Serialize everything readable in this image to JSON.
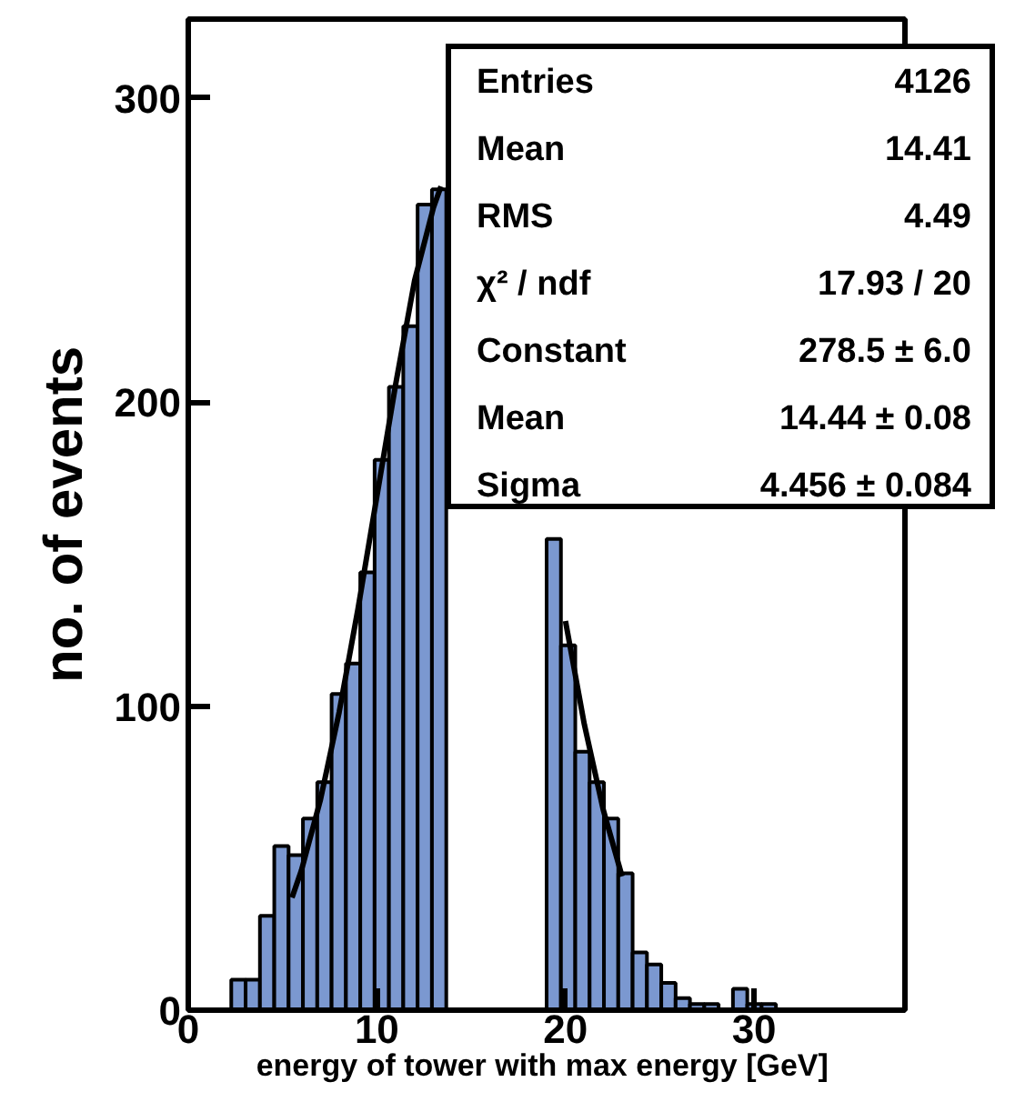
{
  "chart_data": {
    "type": "histogram",
    "xlabel": "energy of tower with max energy  [GeV]",
    "ylabel": "no. of events",
    "xlim": [
      0,
      38
    ],
    "ylim": [
      0,
      326
    ],
    "xticks": [
      0,
      10,
      20,
      30
    ],
    "yticks": [
      0,
      100,
      200,
      300
    ],
    "grid": false,
    "series": [
      {
        "color": "#7b98d0",
        "bins": [
          0,
          0.76,
          1.52,
          2.28,
          3.04,
          3.8,
          4.56,
          5.32,
          6.08,
          6.84,
          7.6,
          8.36,
          9.12,
          9.88,
          10.64,
          11.4,
          12.16,
          12.92,
          13.68,
          14.44,
          15.2,
          15.96,
          16.72,
          17.48,
          18.24,
          19,
          19.76,
          20.52,
          21.28,
          22.04,
          22.8,
          23.56,
          24.32,
          25.08,
          25.84,
          26.6,
          27.36,
          28.12,
          28.88,
          29.64,
          30.4,
          31.16,
          31.92,
          32.68,
          33.44,
          34.2,
          34.96,
          35.72,
          36.48,
          37.24,
          38
        ],
        "values": [
          0,
          0,
          0,
          10,
          10,
          31,
          54,
          51,
          63,
          75,
          104,
          114,
          144,
          181,
          205,
          225,
          265,
          270,
          null,
          null,
          null,
          null,
          null,
          null,
          null,
          155,
          120,
          85,
          75,
          63,
          45,
          19,
          15,
          9,
          4,
          2,
          2,
          0,
          7,
          2,
          2,
          0,
          0,
          0,
          0,
          0,
          0,
          0,
          0,
          0
        ]
      },
      {
        "type": "line",
        "color": "#000000",
        "x": [
          5.5,
          6,
          7,
          8,
          9,
          10,
          11,
          12,
          13,
          13.4,
          19.2,
          20,
          21,
          22,
          23
        ],
        "values": [
          37,
          46,
          69,
          98,
          132,
          169,
          206,
          240,
          264,
          271,
          null,
          128,
          94,
          66,
          44
        ]
      }
    ],
    "annotations": [
      "Entries",
      "4126",
      "Mean",
      "14.41",
      "RMS",
      "4.49",
      "χ² / ndf",
      "17.93 / 20",
      "Constant",
      "278.5 ± 6.0",
      "Mean",
      "14.44 ± 0.08",
      "Sigma",
      "4.456 ± 0.084"
    ]
  }
}
